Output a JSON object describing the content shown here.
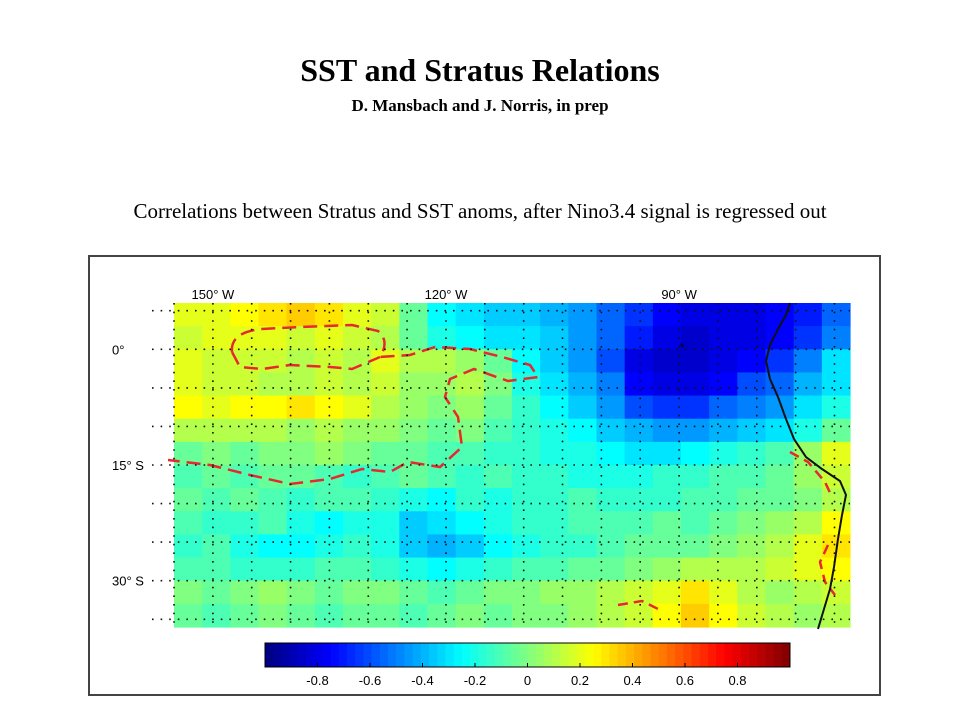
{
  "page": {
    "title": "SST and Stratus Relations",
    "subtitle": "D. Mansbach and J. Norris, in prep",
    "caption": "Correlations between Stratus and SST anoms, after Nino3.4 signal is regressed out"
  },
  "chart_data": {
    "type": "heatmap",
    "title": "",
    "xlabel": "",
    "ylabel": "",
    "x_ticks": [
      {
        "lon": -150,
        "label": "150° W"
      },
      {
        "lon": -120,
        "label": "120° W"
      },
      {
        "lon": -90,
        "label": "90° W"
      }
    ],
    "y_ticks": [
      {
        "lat": 0,
        "label": "0°"
      },
      {
        "lat": -15,
        "label": "15° S"
      },
      {
        "lat": -30,
        "label": "30° S"
      }
    ],
    "lon_range": [
      -155,
      -68
    ],
    "lat_range": [
      -36,
      6
    ],
    "grid_spacing_deg": 5,
    "colorbar": {
      "range": [
        -1,
        1
      ],
      "tick_values": [
        -0.8,
        -0.6,
        -0.4,
        -0.2,
        0,
        0.2,
        0.4,
        0.6,
        0.8
      ],
      "tick_labels": [
        "-0.8",
        "-0.6",
        "-0.4",
        "-0.2",
        "0",
        "0.2",
        "0.4",
        "0.6",
        "0.8"
      ],
      "colormap": "jet"
    },
    "rows": [
      [
        0.2,
        0.2,
        0.25,
        0.3,
        0.35,
        0.3,
        0.2,
        0.15,
        -0.05,
        -0.25,
        -0.3,
        -0.35,
        -0.35,
        -0.4,
        -0.45,
        -0.55,
        -0.65,
        -0.75,
        -0.8,
        -0.8,
        -0.8,
        -0.75,
        -0.7,
        -0.55
      ],
      [
        0.15,
        0.2,
        0.2,
        0.2,
        0.15,
        0.2,
        0.15,
        0.1,
        -0.05,
        -0.2,
        -0.25,
        -0.3,
        -0.3,
        -0.35,
        -0.45,
        -0.55,
        -0.7,
        -0.8,
        -0.85,
        -0.8,
        -0.8,
        -0.75,
        -0.65,
        -0.5
      ],
      [
        0.2,
        0.15,
        0.15,
        0.15,
        0.1,
        0.15,
        0.1,
        0.2,
        0.1,
        0.1,
        0.05,
        -0.05,
        -0.25,
        -0.35,
        -0.45,
        -0.6,
        -0.8,
        -0.85,
        -0.85,
        -0.8,
        -0.75,
        -0.65,
        -0.5,
        -0.3
      ],
      [
        0.2,
        0.15,
        0.15,
        0.1,
        0.1,
        0.15,
        0.1,
        0.15,
        0.05,
        0.05,
        0.1,
        0.0,
        -0.2,
        -0.3,
        -0.4,
        -0.5,
        -0.75,
        -0.8,
        -0.8,
        -0.75,
        -0.6,
        -0.55,
        -0.4,
        -0.3
      ],
      [
        0.25,
        0.2,
        0.25,
        0.25,
        0.3,
        0.25,
        0.2,
        0.1,
        0.05,
        0.0,
        0.05,
        -0.05,
        -0.15,
        -0.25,
        -0.35,
        -0.45,
        -0.6,
        -0.65,
        -0.65,
        -0.55,
        -0.5,
        -0.45,
        -0.3,
        -0.2
      ],
      [
        0.1,
        0.1,
        0.1,
        0.1,
        0.05,
        0.1,
        0.05,
        0.05,
        0.0,
        -0.05,
        0.0,
        -0.1,
        -0.15,
        -0.2,
        -0.25,
        -0.35,
        -0.4,
        -0.45,
        -0.45,
        -0.4,
        -0.35,
        -0.3,
        -0.2,
        -0.05
      ],
      [
        -0.05,
        0.0,
        -0.05,
        0.0,
        0.0,
        0.05,
        0.0,
        -0.05,
        -0.05,
        -0.1,
        -0.1,
        -0.15,
        -0.15,
        -0.2,
        -0.2,
        -0.25,
        -0.3,
        -0.3,
        -0.25,
        -0.2,
        -0.15,
        -0.1,
        0.05,
        0.2
      ],
      [
        -0.1,
        -0.05,
        -0.1,
        -0.05,
        -0.05,
        -0.1,
        -0.15,
        -0.1,
        -0.05,
        -0.1,
        -0.15,
        -0.1,
        -0.15,
        -0.15,
        -0.2,
        -0.2,
        -0.2,
        -0.15,
        -0.15,
        -0.1,
        -0.1,
        -0.05,
        0.05,
        0.15
      ],
      [
        -0.05,
        -0.1,
        -0.05,
        -0.1,
        -0.15,
        -0.1,
        -0.1,
        -0.15,
        -0.2,
        -0.25,
        -0.15,
        -0.2,
        -0.15,
        -0.15,
        -0.1,
        -0.15,
        -0.15,
        -0.15,
        -0.1,
        -0.1,
        -0.05,
        -0.05,
        0.0,
        0.1
      ],
      [
        -0.1,
        -0.15,
        -0.15,
        -0.1,
        -0.2,
        -0.25,
        -0.2,
        -0.2,
        -0.35,
        -0.3,
        -0.25,
        -0.2,
        -0.15,
        -0.15,
        -0.1,
        -0.1,
        -0.1,
        -0.05,
        -0.1,
        -0.05,
        0.0,
        0.05,
        0.1,
        0.25
      ],
      [
        -0.15,
        -0.1,
        -0.2,
        -0.25,
        -0.25,
        -0.2,
        -0.15,
        -0.2,
        -0.35,
        -0.4,
        -0.35,
        -0.25,
        -0.2,
        -0.15,
        -0.15,
        -0.1,
        -0.05,
        -0.05,
        -0.05,
        0.0,
        0.05,
        0.1,
        0.2,
        0.3
      ],
      [
        -0.1,
        -0.1,
        -0.15,
        -0.15,
        -0.15,
        -0.1,
        -0.1,
        -0.15,
        -0.2,
        -0.25,
        -0.2,
        -0.15,
        -0.1,
        -0.1,
        -0.05,
        -0.05,
        0.0,
        0.05,
        0.1,
        0.1,
        0.1,
        0.15,
        0.2,
        0.25
      ],
      [
        0.0,
        -0.05,
        0.0,
        0.05,
        0.0,
        -0.05,
        0.0,
        0.0,
        -0.05,
        -0.1,
        -0.05,
        0.0,
        0.0,
        0.05,
        0.05,
        0.1,
        0.15,
        0.2,
        0.3,
        0.2,
        0.1,
        0.05,
        0.1,
        0.15
      ],
      [
        -0.05,
        -0.1,
        -0.05,
        0.0,
        -0.05,
        -0.1,
        -0.05,
        -0.05,
        -0.1,
        -0.05,
        0.0,
        -0.05,
        0.0,
        0.0,
        0.05,
        0.1,
        0.15,
        0.25,
        0.35,
        0.25,
        0.15,
        0.1,
        0.05,
        0.1
      ]
    ]
  }
}
